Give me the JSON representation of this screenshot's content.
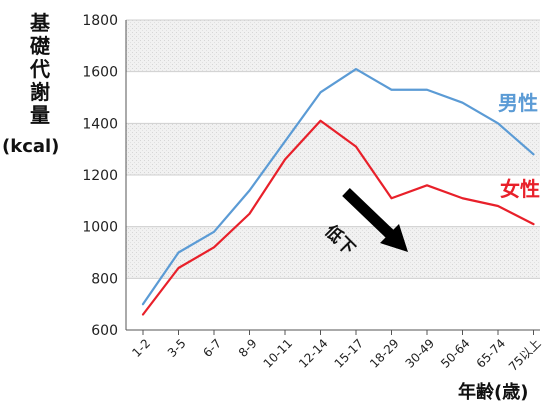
{
  "chart_data": {
    "type": "line",
    "ylabel": "基礎代謝量",
    "ylabel_unit": "(kcal)",
    "xlabel": "年齢(歳)",
    "categories": [
      "1-2",
      "3-5",
      "6-7",
      "8-9",
      "10-11",
      "12-14",
      "15-17",
      "18-29",
      "30-49",
      "50-64",
      "65-74",
      "75以上"
    ],
    "ylim": [
      600,
      1800
    ],
    "yticks": [
      600,
      800,
      1000,
      1200,
      1400,
      1600,
      1800
    ],
    "grid": "alternating bands",
    "series": [
      {
        "name": "男性",
        "color": "#5b9bd5",
        "values": [
          700,
          900,
          980,
          1140,
          1330,
          1520,
          1610,
          1530,
          1530,
          1480,
          1400,
          1280
        ]
      },
      {
        "name": "女性",
        "color": "#e8202a",
        "values": [
          660,
          840,
          920,
          1050,
          1260,
          1410,
          1310,
          1110,
          1160,
          1110,
          1080,
          1010
        ]
      }
    ],
    "annotation": {
      "text": "低下",
      "icon": "arrow-down-right-icon"
    }
  }
}
